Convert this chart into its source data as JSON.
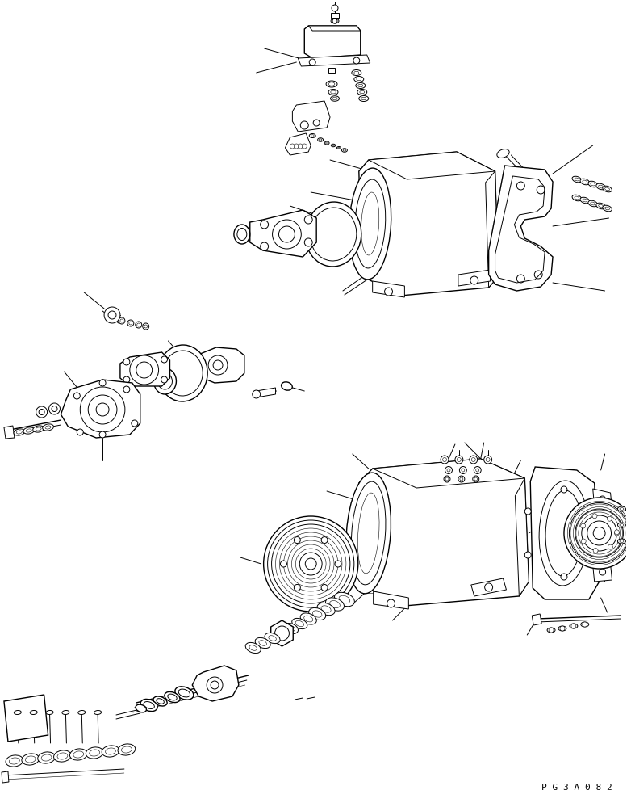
{
  "page_code": "P G 3 A 0 8 2",
  "background_color": "#ffffff",
  "line_color": "#000000",
  "fig_width": 7.82,
  "fig_height": 9.99,
  "dpi": 100
}
